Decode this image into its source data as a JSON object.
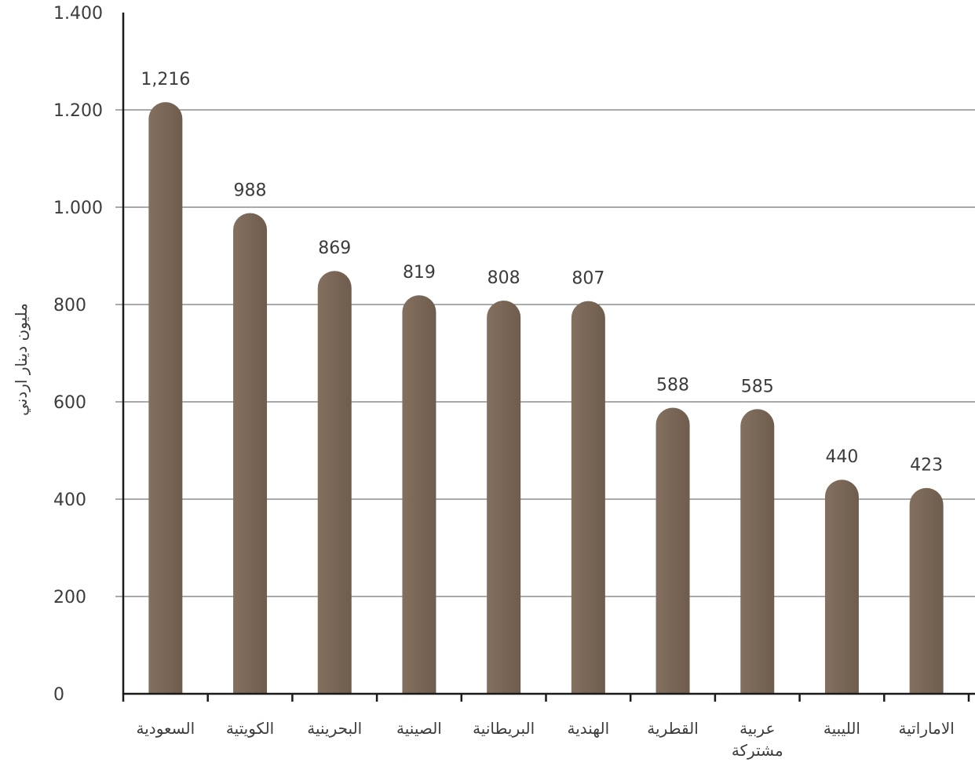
{
  "chart_data": {
    "type": "bar",
    "title": "",
    "xlabel": "",
    "ylabel": "مليون دينار اردني",
    "categories": [
      "السعودية",
      "الكويتية",
      "البحرينية",
      "الصينية",
      "البريطانية",
      "الهندية",
      "القطرية",
      "عربية مشتركة",
      "الليبية",
      "الاماراتية"
    ],
    "values": [
      1216,
      988,
      869,
      819,
      808,
      807,
      588,
      585,
      440,
      423
    ],
    "value_labels": [
      "1,216",
      "988",
      "869",
      "819",
      "808",
      "807",
      "588",
      "585",
      "440",
      "423"
    ],
    "yticks": [
      0,
      200,
      400,
      600,
      800,
      1000,
      1200,
      1400
    ],
    "ytick_labels": [
      "0",
      "200",
      "400",
      "600",
      "800",
      "1.000",
      "1.200",
      "1.400"
    ],
    "ylim": [
      0,
      1400
    ],
    "grid": true,
    "legend": "none",
    "bar_color": "#84705f",
    "bar_color_dark": "#6e5c4d"
  }
}
